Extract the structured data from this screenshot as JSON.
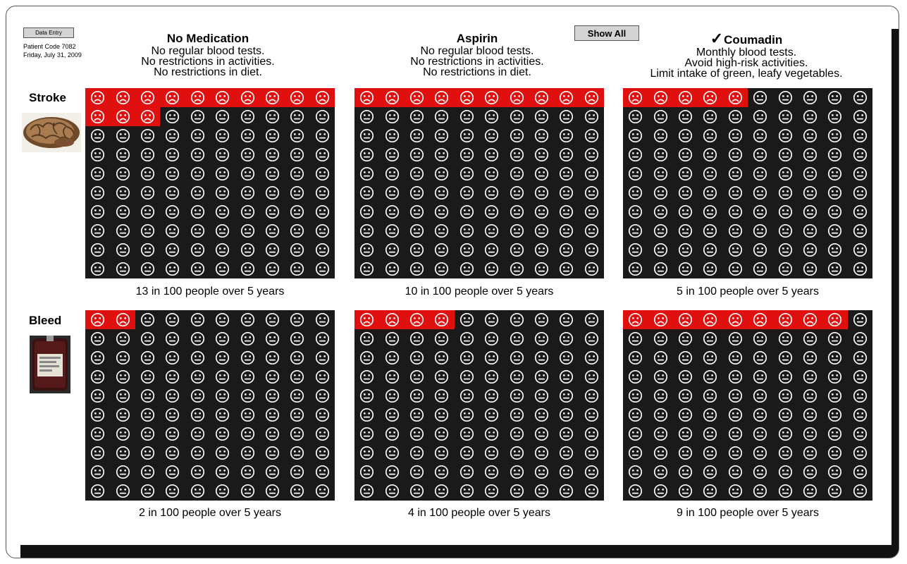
{
  "toolbar": {
    "data_entry_label": "Data Entry",
    "show_all_label": "Show All"
  },
  "patient": {
    "code": "Patient Code 7082",
    "date": "Friday, July 31, 2009"
  },
  "columns": [
    {
      "title": "No Medication",
      "checked": false,
      "desc": [
        "No regular blood tests.",
        "No restrictions in activities.",
        "No restrictions in diet."
      ]
    },
    {
      "title": "Aspirin",
      "checked": false,
      "desc": [
        "No regular blood tests.",
        "No restrictions in activities.",
        "No restrictions in diet."
      ]
    },
    {
      "title": "Coumadin",
      "checked": true,
      "check_glyph": "✓",
      "desc": [
        "Monthly blood tests.",
        "Avoid high-risk activities.",
        "Limit intake of green, leafy vegetables."
      ]
    }
  ],
  "rows": [
    {
      "label": "Stroke",
      "image_icon": "brain-photo",
      "cells": [
        {
          "affected": 13,
          "total": 100,
          "caption": "13 in 100 people over 5 years"
        },
        {
          "affected": 10,
          "total": 100,
          "caption": "10 in 100 people over 5 years"
        },
        {
          "affected": 5,
          "total": 100,
          "caption": "5 in 100 people over 5 years"
        }
      ]
    },
    {
      "label": "Bleed",
      "image_icon": "blood-bag-photo",
      "cells": [
        {
          "affected": 2,
          "total": 100,
          "caption": "2 in 100 people over 5 years"
        },
        {
          "affected": 4,
          "total": 100,
          "caption": "4 in 100 people over 5 years"
        },
        {
          "affected": 9,
          "total": 100,
          "caption": "9 in 100 people over 5 years"
        }
      ]
    }
  ],
  "colors": {
    "affected": "#e01010",
    "grid_bg": "#1a1a1a",
    "face": "#ffffff"
  },
  "icons": {
    "affected_face": "frown-face-icon",
    "unaffected_face": "neutral-face-icon"
  }
}
